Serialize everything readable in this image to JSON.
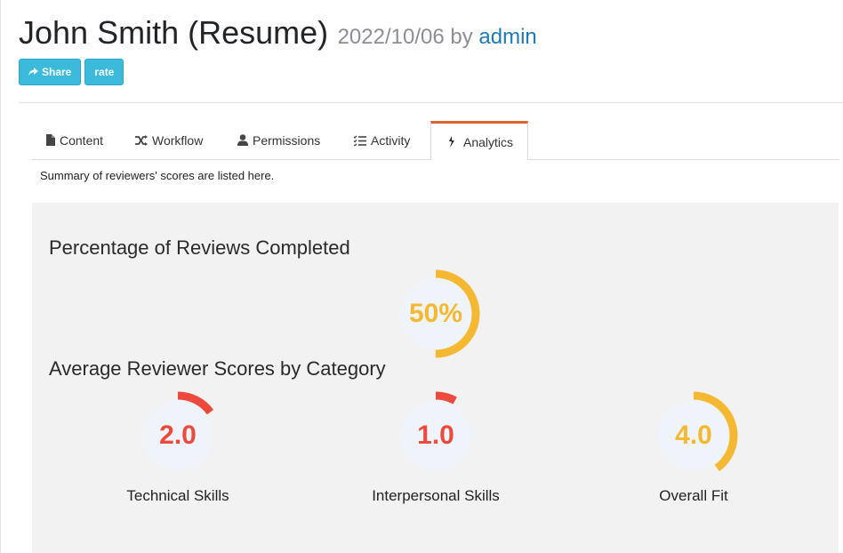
{
  "header": {
    "title": "John Smith (Resume)",
    "date": "2022/10/06",
    "by": "by",
    "author": "admin"
  },
  "buttons": {
    "share_label": "Share",
    "rate_label": "rate"
  },
  "tabs": [
    {
      "label": "Content",
      "icon": "file-icon"
    },
    {
      "label": "Workflow",
      "icon": "shuffle-icon"
    },
    {
      "label": "Permissions",
      "icon": "user-icon"
    },
    {
      "label": "Activity",
      "icon": "list-icon"
    },
    {
      "label": "Analytics",
      "icon": "chart-icon",
      "active": true
    }
  ],
  "summary_text": "Summary of reviewers' scores are listed here.",
  "completion": {
    "heading": "Percentage of Reviews Completed",
    "value_text": "50%",
    "fraction": 0.5,
    "color": "#f4b832"
  },
  "categories": {
    "heading": "Average Reviewer Scores by Category",
    "items": [
      {
        "label": "Technical Skills",
        "value_text": "2.0",
        "fraction": 0.15,
        "color": "#ec4a3c"
      },
      {
        "label": "Interpersonal Skills",
        "value_text": "1.0",
        "fraction": 0.08,
        "color": "#ec4a3c"
      },
      {
        "label": "Overall Fit",
        "value_text": "4.0",
        "fraction": 0.4,
        "color": "#f4b832"
      }
    ]
  },
  "colors": {
    "accent": "#3bbadb",
    "active_tab": "#e0622c",
    "link": "#1f7ab8",
    "gauge_bg": "#eef4f9"
  }
}
